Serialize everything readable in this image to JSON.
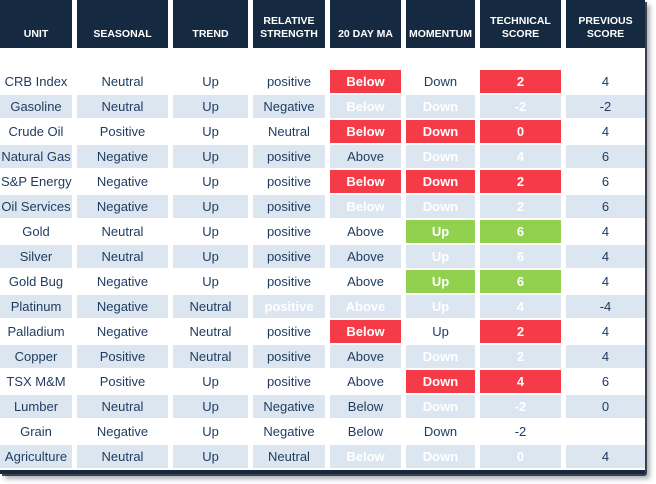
{
  "colors": {
    "header_bg": "#152A40",
    "row_alt": "#DCE6F1",
    "text": "#1E3A5F",
    "red": "#F43B47",
    "green": "#92D050",
    "header_text": "#FFFFFF"
  },
  "chart_data": {
    "type": "table",
    "columns": [
      "UNIT",
      "SEASONAL",
      "TREND",
      "RELATIVE STRENGTH",
      "20 DAY MA",
      "MOMENTUM",
      "TECHNICAL SCORE",
      "PREVIOUS SCORE"
    ],
    "column_keys": [
      "unit",
      "seasonal",
      "trend",
      "relative-strength",
      "20-day-ma",
      "momentum",
      "technical-score",
      "previous-score"
    ],
    "rows": [
      {
        "cells": [
          {
            "text": "CRB Index",
            "fill": "none"
          },
          {
            "text": "Neutral",
            "fill": "none"
          },
          {
            "text": "Up",
            "fill": "none"
          },
          {
            "text": "positive",
            "fill": "none"
          },
          {
            "text": "Below",
            "fill": "red"
          },
          {
            "text": "Down",
            "fill": "none"
          },
          {
            "text": "2",
            "fill": "red"
          },
          {
            "text": "4",
            "fill": "none"
          }
        ]
      },
      {
        "cells": [
          {
            "text": "Gasoline",
            "fill": "none"
          },
          {
            "text": "Neutral",
            "fill": "none"
          },
          {
            "text": "Up",
            "fill": "none"
          },
          {
            "text": "Negative",
            "fill": "none"
          },
          {
            "text": "Below",
            "fill": "red"
          },
          {
            "text": "Down",
            "fill": "red"
          },
          {
            "text": "-2",
            "fill": "red"
          },
          {
            "text": "-2",
            "fill": "none"
          }
        ]
      },
      {
        "cells": [
          {
            "text": "Crude Oil",
            "fill": "none"
          },
          {
            "text": "Positive",
            "fill": "none"
          },
          {
            "text": "Up",
            "fill": "none"
          },
          {
            "text": "Neutral",
            "fill": "none"
          },
          {
            "text": "Below",
            "fill": "red"
          },
          {
            "text": "Down",
            "fill": "red"
          },
          {
            "text": "0",
            "fill": "red"
          },
          {
            "text": "4",
            "fill": "none"
          }
        ]
      },
      {
        "cells": [
          {
            "text": "Natural Gas",
            "fill": "none"
          },
          {
            "text": "Negative",
            "fill": "none"
          },
          {
            "text": "Up",
            "fill": "none"
          },
          {
            "text": "positive",
            "fill": "none"
          },
          {
            "text": "Above",
            "fill": "none"
          },
          {
            "text": "Down",
            "fill": "red"
          },
          {
            "text": "4",
            "fill": "red"
          },
          {
            "text": "6",
            "fill": "none"
          }
        ]
      },
      {
        "cells": [
          {
            "text": "S&P Energy",
            "fill": "none"
          },
          {
            "text": "Negative",
            "fill": "none"
          },
          {
            "text": "Up",
            "fill": "none"
          },
          {
            "text": "positive",
            "fill": "none"
          },
          {
            "text": "Below",
            "fill": "red"
          },
          {
            "text": "Down",
            "fill": "red"
          },
          {
            "text": "2",
            "fill": "red"
          },
          {
            "text": "6",
            "fill": "none"
          }
        ]
      },
      {
        "cells": [
          {
            "text": "Oil Services",
            "fill": "none"
          },
          {
            "text": "Negative",
            "fill": "none"
          },
          {
            "text": "Up",
            "fill": "none"
          },
          {
            "text": "positive",
            "fill": "none"
          },
          {
            "text": "Below",
            "fill": "red"
          },
          {
            "text": "Down",
            "fill": "red"
          },
          {
            "text": "2",
            "fill": "red"
          },
          {
            "text": "6",
            "fill": "none"
          }
        ]
      },
      {
        "cells": [
          {
            "text": "Gold",
            "fill": "none"
          },
          {
            "text": "Neutral",
            "fill": "none"
          },
          {
            "text": "Up",
            "fill": "none"
          },
          {
            "text": "positive",
            "fill": "none"
          },
          {
            "text": "Above",
            "fill": "none"
          },
          {
            "text": "Up",
            "fill": "green"
          },
          {
            "text": "6",
            "fill": "green"
          },
          {
            "text": "4",
            "fill": "none"
          }
        ]
      },
      {
        "cells": [
          {
            "text": "Silver",
            "fill": "none"
          },
          {
            "text": "Neutral",
            "fill": "none"
          },
          {
            "text": "Up",
            "fill": "none"
          },
          {
            "text": "positive",
            "fill": "none"
          },
          {
            "text": "Above",
            "fill": "none"
          },
          {
            "text": "Up",
            "fill": "green"
          },
          {
            "text": "6",
            "fill": "green"
          },
          {
            "text": "4",
            "fill": "none"
          }
        ]
      },
      {
        "cells": [
          {
            "text": "Gold Bug",
            "fill": "none"
          },
          {
            "text": "Negative",
            "fill": "none"
          },
          {
            "text": "Up",
            "fill": "none"
          },
          {
            "text": "positive",
            "fill": "none"
          },
          {
            "text": "Above",
            "fill": "none"
          },
          {
            "text": "Up",
            "fill": "green"
          },
          {
            "text": "6",
            "fill": "green"
          },
          {
            "text": "4",
            "fill": "none"
          }
        ]
      },
      {
        "cells": [
          {
            "text": "Platinum",
            "fill": "none"
          },
          {
            "text": "Negative",
            "fill": "none"
          },
          {
            "text": "Neutral",
            "fill": "none"
          },
          {
            "text": "positive",
            "fill": "green"
          },
          {
            "text": "Above",
            "fill": "green"
          },
          {
            "text": "Up",
            "fill": "green"
          },
          {
            "text": "4",
            "fill": "green"
          },
          {
            "text": "-4",
            "fill": "none"
          }
        ]
      },
      {
        "cells": [
          {
            "text": "Palladium",
            "fill": "none"
          },
          {
            "text": "Negative",
            "fill": "none"
          },
          {
            "text": "Neutral",
            "fill": "none"
          },
          {
            "text": "positive",
            "fill": "none"
          },
          {
            "text": "Below",
            "fill": "red"
          },
          {
            "text": "Up",
            "fill": "none"
          },
          {
            "text": "2",
            "fill": "red"
          },
          {
            "text": "4",
            "fill": "none"
          }
        ]
      },
      {
        "cells": [
          {
            "text": "Copper",
            "fill": "none"
          },
          {
            "text": "Positive",
            "fill": "none"
          },
          {
            "text": "Neutral",
            "fill": "none"
          },
          {
            "text": "positive",
            "fill": "none"
          },
          {
            "text": "Above",
            "fill": "none"
          },
          {
            "text": "Down",
            "fill": "red"
          },
          {
            "text": "2",
            "fill": "red"
          },
          {
            "text": "4",
            "fill": "none"
          }
        ]
      },
      {
        "cells": [
          {
            "text": "TSX M&M",
            "fill": "none"
          },
          {
            "text": "Positive",
            "fill": "none"
          },
          {
            "text": "Up",
            "fill": "none"
          },
          {
            "text": "positive",
            "fill": "none"
          },
          {
            "text": "Above",
            "fill": "none"
          },
          {
            "text": "Down",
            "fill": "red"
          },
          {
            "text": "4",
            "fill": "red"
          },
          {
            "text": "6",
            "fill": "none"
          }
        ]
      },
      {
        "cells": [
          {
            "text": "Lumber",
            "fill": "none"
          },
          {
            "text": "Neutral",
            "fill": "none"
          },
          {
            "text": "Up",
            "fill": "none"
          },
          {
            "text": "Negative",
            "fill": "none"
          },
          {
            "text": "Below",
            "fill": "none"
          },
          {
            "text": "Down",
            "fill": "red"
          },
          {
            "text": "-2",
            "fill": "red"
          },
          {
            "text": "0",
            "fill": "none"
          }
        ]
      },
      {
        "cells": [
          {
            "text": "Grain",
            "fill": "none"
          },
          {
            "text": "Negative",
            "fill": "none"
          },
          {
            "text": "Up",
            "fill": "none"
          },
          {
            "text": "Negative",
            "fill": "none"
          },
          {
            "text": "Below",
            "fill": "none"
          },
          {
            "text": "Down",
            "fill": "none"
          },
          {
            "text": "-2",
            "fill": "none"
          },
          {
            "text": "",
            "fill": "none"
          }
        ]
      },
      {
        "cells": [
          {
            "text": "Agriculture",
            "fill": "none"
          },
          {
            "text": "Neutral",
            "fill": "none"
          },
          {
            "text": "Up",
            "fill": "none"
          },
          {
            "text": "Neutral",
            "fill": "none"
          },
          {
            "text": "Below",
            "fill": "red"
          },
          {
            "text": "Down",
            "fill": "red"
          },
          {
            "text": "0",
            "fill": "red"
          },
          {
            "text": "4",
            "fill": "none"
          }
        ]
      }
    ]
  }
}
